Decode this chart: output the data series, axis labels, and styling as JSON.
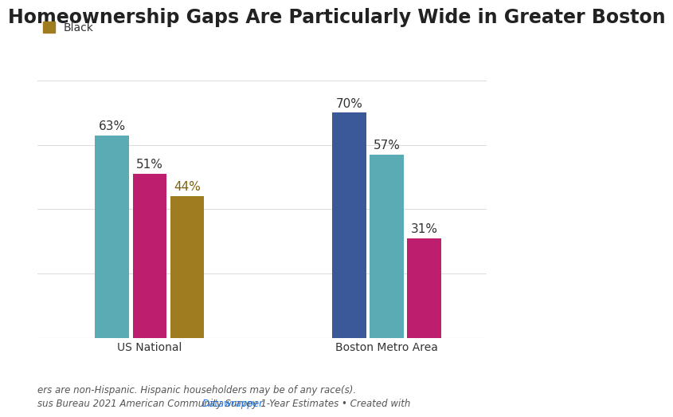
{
  "title": "Homeownership Gaps Are Particularly Wide in Greater Boston",
  "groups": [
    "US National",
    "Boston Metro Area"
  ],
  "bar_order": {
    "US National": [
      63,
      51,
      44
    ],
    "Boston Metro Area": [
      70,
      57,
      31
    ]
  },
  "bar_colors_order": {
    "US National": [
      "#5BABB4",
      "#BE1E6E",
      "#A07C20"
    ],
    "Boston Metro Area": [
      "#3B5998",
      "#5BABB4",
      "#BE1E6E"
    ]
  },
  "legend_items": [
    {
      "label": "Black",
      "color": "#A07C20"
    }
  ],
  "ylim": [
    0,
    80
  ],
  "footnote1": "ers are non-Hispanic. Hispanic householders may be of any race(s).",
  "footnote2_prefix": "sus Bureau 2021 American Community Survey 1-Year Estimates • Created with ",
  "footnote2_link": "Datawrapper",
  "background_color": "#ffffff",
  "grid_color": "#dddddd",
  "title_fontsize": 17,
  "label_fontsize": 11,
  "tick_fontsize": 10,
  "footnote_fontsize": 8.5,
  "bar_width": 0.28,
  "group_centers": [
    0.55,
    2.45
  ],
  "xlim": [
    -0.35,
    3.25
  ],
  "label_color_default": "#333333",
  "label_color_gold": "#7A6010"
}
